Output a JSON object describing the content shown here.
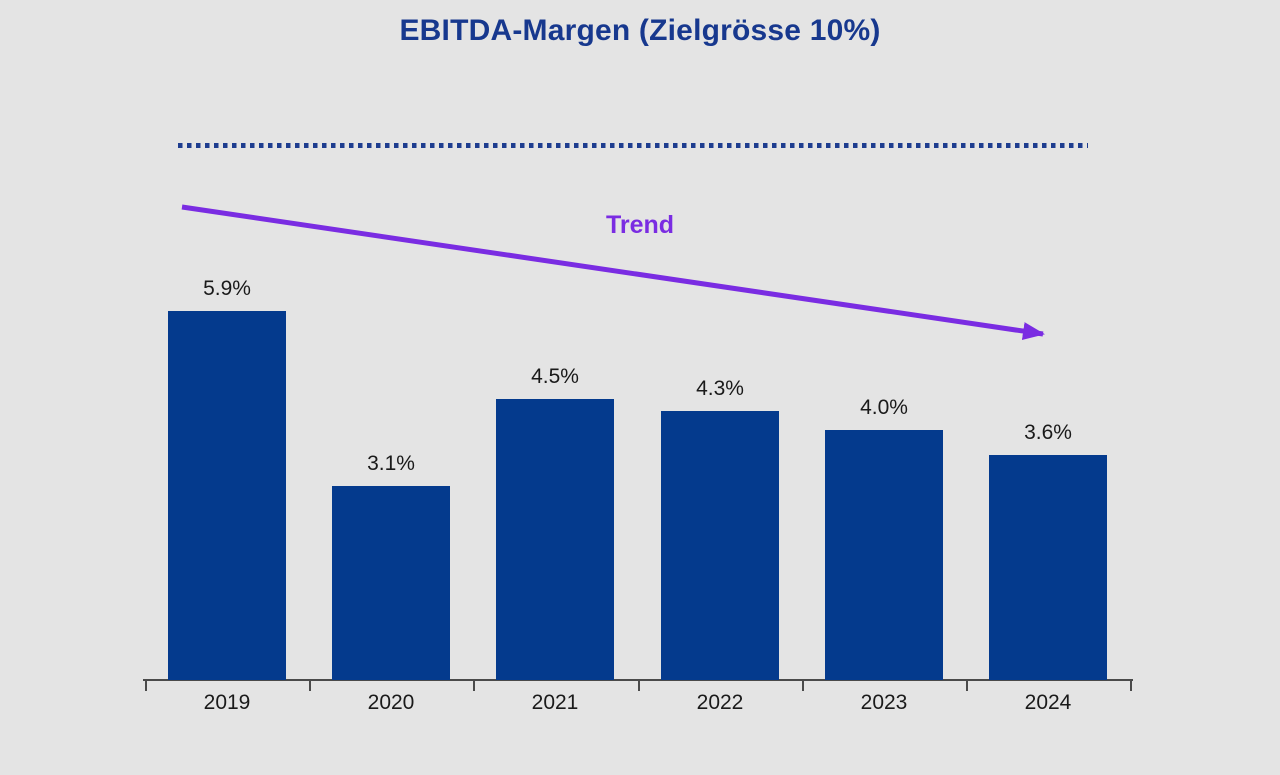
{
  "title": "EBITDA-Margen (Zielgrösse 10%)",
  "trend_label": "Trend",
  "colors": {
    "background": "#e4e4e4",
    "bar": "#043a8d",
    "title": "#17388e",
    "target_line": "#1e3d8f",
    "trend": "#7a2ce2",
    "axis": "#4a4a4a",
    "text": "#1a1a1a"
  },
  "chart_data": {
    "type": "bar",
    "title": "EBITDA-Margen (Zielgrösse 10%)",
    "categories": [
      "2019",
      "2020",
      "2021",
      "2022",
      "2023",
      "2024"
    ],
    "values": [
      5.9,
      3.1,
      4.5,
      4.3,
      4.0,
      3.6
    ],
    "value_labels": [
      "5.9%",
      "3.1%",
      "4.5%",
      "4.3%",
      "4.0%",
      "3.6%"
    ],
    "unit": "%",
    "xlabel": "",
    "ylabel": "",
    "ylim": [
      0,
      10
    ],
    "grid": false,
    "legend": false,
    "target_reference": {
      "value": 10,
      "label": "Zielgrösse 10%",
      "style": "dotted-line"
    },
    "annotations": [
      {
        "text": "Trend",
        "type": "arrow",
        "direction": "declining-left-to-right"
      }
    ]
  }
}
